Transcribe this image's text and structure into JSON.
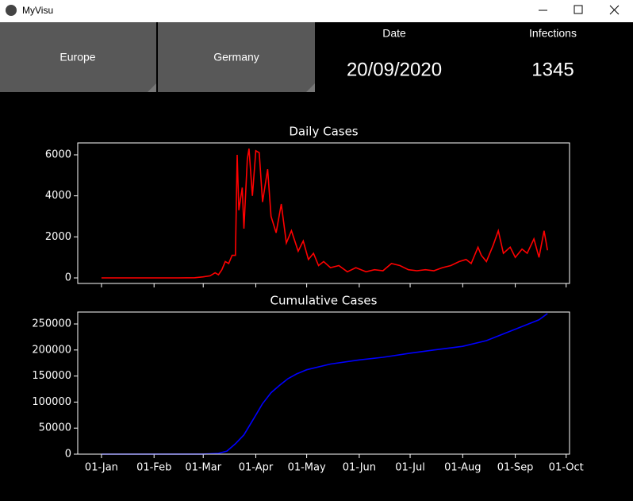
{
  "window": {
    "title": "MyVisu"
  },
  "buttons": [
    "Europe",
    "Germany"
  ],
  "info": [
    {
      "label": "Date",
      "value": "20/09/2020"
    },
    {
      "label": "Infections",
      "value": "1345"
    }
  ],
  "chart_data": [
    {
      "type": "line",
      "title": "Daily Cases",
      "color": "#ff0000",
      "x": [
        "01-Jan",
        "15-Jan",
        "01-Feb",
        "15-Feb",
        "25-Feb",
        "01-Mar",
        "05-Mar",
        "08-Mar",
        "10-Mar",
        "12-Mar",
        "14-Mar",
        "16-Mar",
        "18-Mar",
        "20-Mar",
        "21-Mar",
        "22-Mar",
        "24-Mar",
        "25-Mar",
        "27-Mar",
        "28-Mar",
        "30-Mar",
        "01-Apr",
        "03-Apr",
        "05-Apr",
        "08-Apr",
        "10-Apr",
        "13-Apr",
        "16-Apr",
        "19-Apr",
        "22-Apr",
        "26-Apr",
        "29-Apr",
        "02-May",
        "05-May",
        "08-May",
        "11-May",
        "15-May",
        "20-May",
        "25-May",
        "30-May",
        "05-Jun",
        "10-Jun",
        "15-Jun",
        "20-Jun",
        "25-Jun",
        "30-Jun",
        "05-Jul",
        "10-Jul",
        "15-Jul",
        "20-Jul",
        "25-Jul",
        "30-Jul",
        "03-Aug",
        "06-Aug",
        "10-Aug",
        "12-Aug",
        "15-Aug",
        "19-Aug",
        "22-Aug",
        "25-Aug",
        "29-Aug",
        "01-Sep",
        "05-Sep",
        "08-Sep",
        "12-Sep",
        "15-Sep",
        "18-Sep",
        "20-Sep"
      ],
      "values": [
        0,
        0,
        0,
        0,
        10,
        50,
        100,
        250,
        150,
        400,
        800,
        700,
        1100,
        1100,
        6000,
        3300,
        4400,
        2400,
        5800,
        6300,
        4000,
        6200,
        6100,
        3700,
        5300,
        3000,
        2200,
        3600,
        1700,
        2300,
        1300,
        1800,
        900,
        1200,
        600,
        800,
        500,
        600,
        300,
        500,
        300,
        400,
        350,
        700,
        600,
        400,
        350,
        400,
        350,
        500,
        600,
        800,
        900,
        700,
        1500,
        1100,
        800,
        1600,
        2300,
        1200,
        1500,
        1000,
        1400,
        1200,
        1900,
        1000,
        2300,
        1345
      ],
      "xlim": [
        "18-Dec",
        "03-Oct"
      ],
      "ylim": [
        -270,
        6580
      ],
      "yticks": [
        0,
        2000,
        4000,
        6000
      ]
    },
    {
      "type": "line",
      "title": "Cumulative Cases",
      "color": "#0000ff",
      "x": [
        "01-Jan",
        "01-Mar",
        "10-Mar",
        "15-Mar",
        "20-Mar",
        "25-Mar",
        "01-Apr",
        "05-Apr",
        "10-Apr",
        "15-Apr",
        "20-Apr",
        "25-Apr",
        "01-May",
        "15-May",
        "01-Jun",
        "15-Jun",
        "01-Jul",
        "15-Jul",
        "01-Aug",
        "15-Aug",
        "01-Sep",
        "15-Sep",
        "20-Sep"
      ],
      "values": [
        0,
        100,
        1500,
        6000,
        20000,
        37000,
        75000,
        97000,
        118000,
        132000,
        145000,
        154000,
        162000,
        173000,
        181000,
        186000,
        194000,
        200000,
        207000,
        218000,
        240000,
        258000,
        270000
      ],
      "xlim": [
        "18-Dec",
        "03-Oct"
      ],
      "ylim": [
        0,
        272900
      ],
      "xticks": [
        "01-Jan",
        "01-Feb",
        "01-Mar",
        "01-Apr",
        "01-May",
        "01-Jun",
        "01-Jul",
        "01-Aug",
        "01-Sep",
        "01-Oct"
      ],
      "yticks": [
        0,
        50000,
        100000,
        150000,
        200000,
        250000
      ]
    }
  ]
}
